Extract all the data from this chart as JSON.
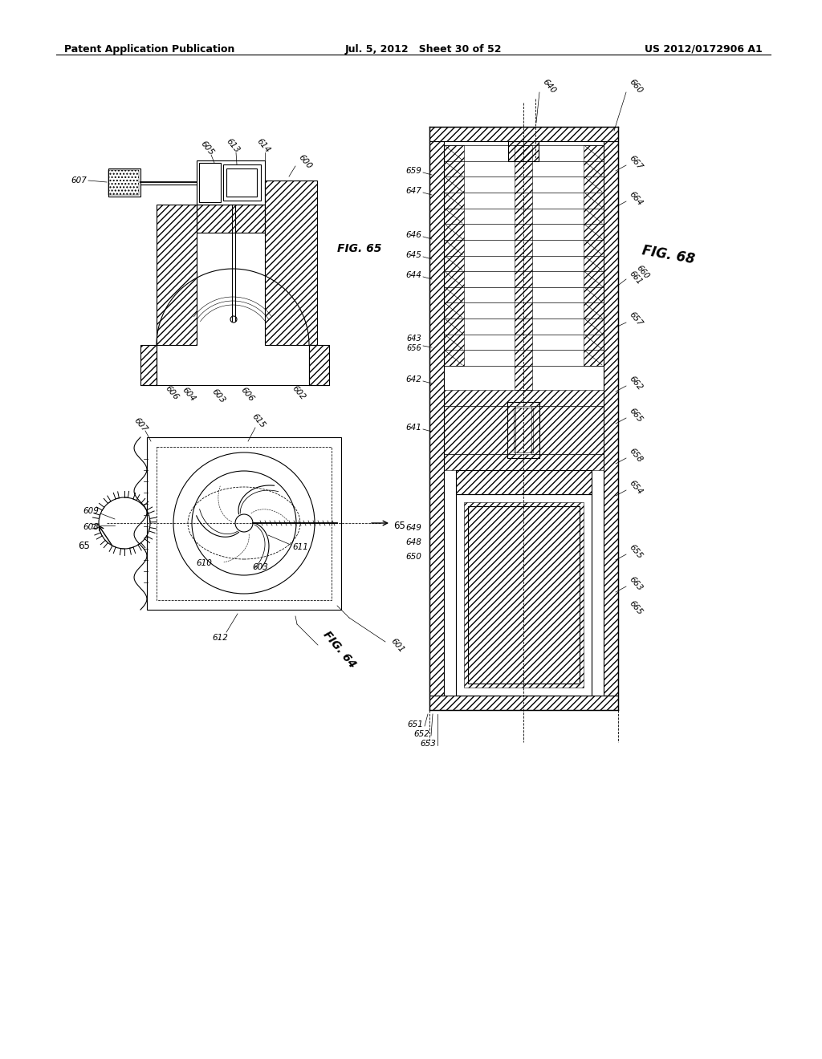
{
  "background_color": "#ffffff",
  "header_left": "Patent Application Publication",
  "header_center": "Jul. 5, 2012   Sheet 30 of 52",
  "header_right": "US 2012/0172906 A1",
  "fig65_label": "FIG. 65",
  "fig64_label": "FIG. 64",
  "fig68_label": "FIG. 68",
  "line_color": "#000000",
  "label_fontsize": 7.5,
  "header_fontsize": 9,
  "fig_label_fontsize": 10
}
